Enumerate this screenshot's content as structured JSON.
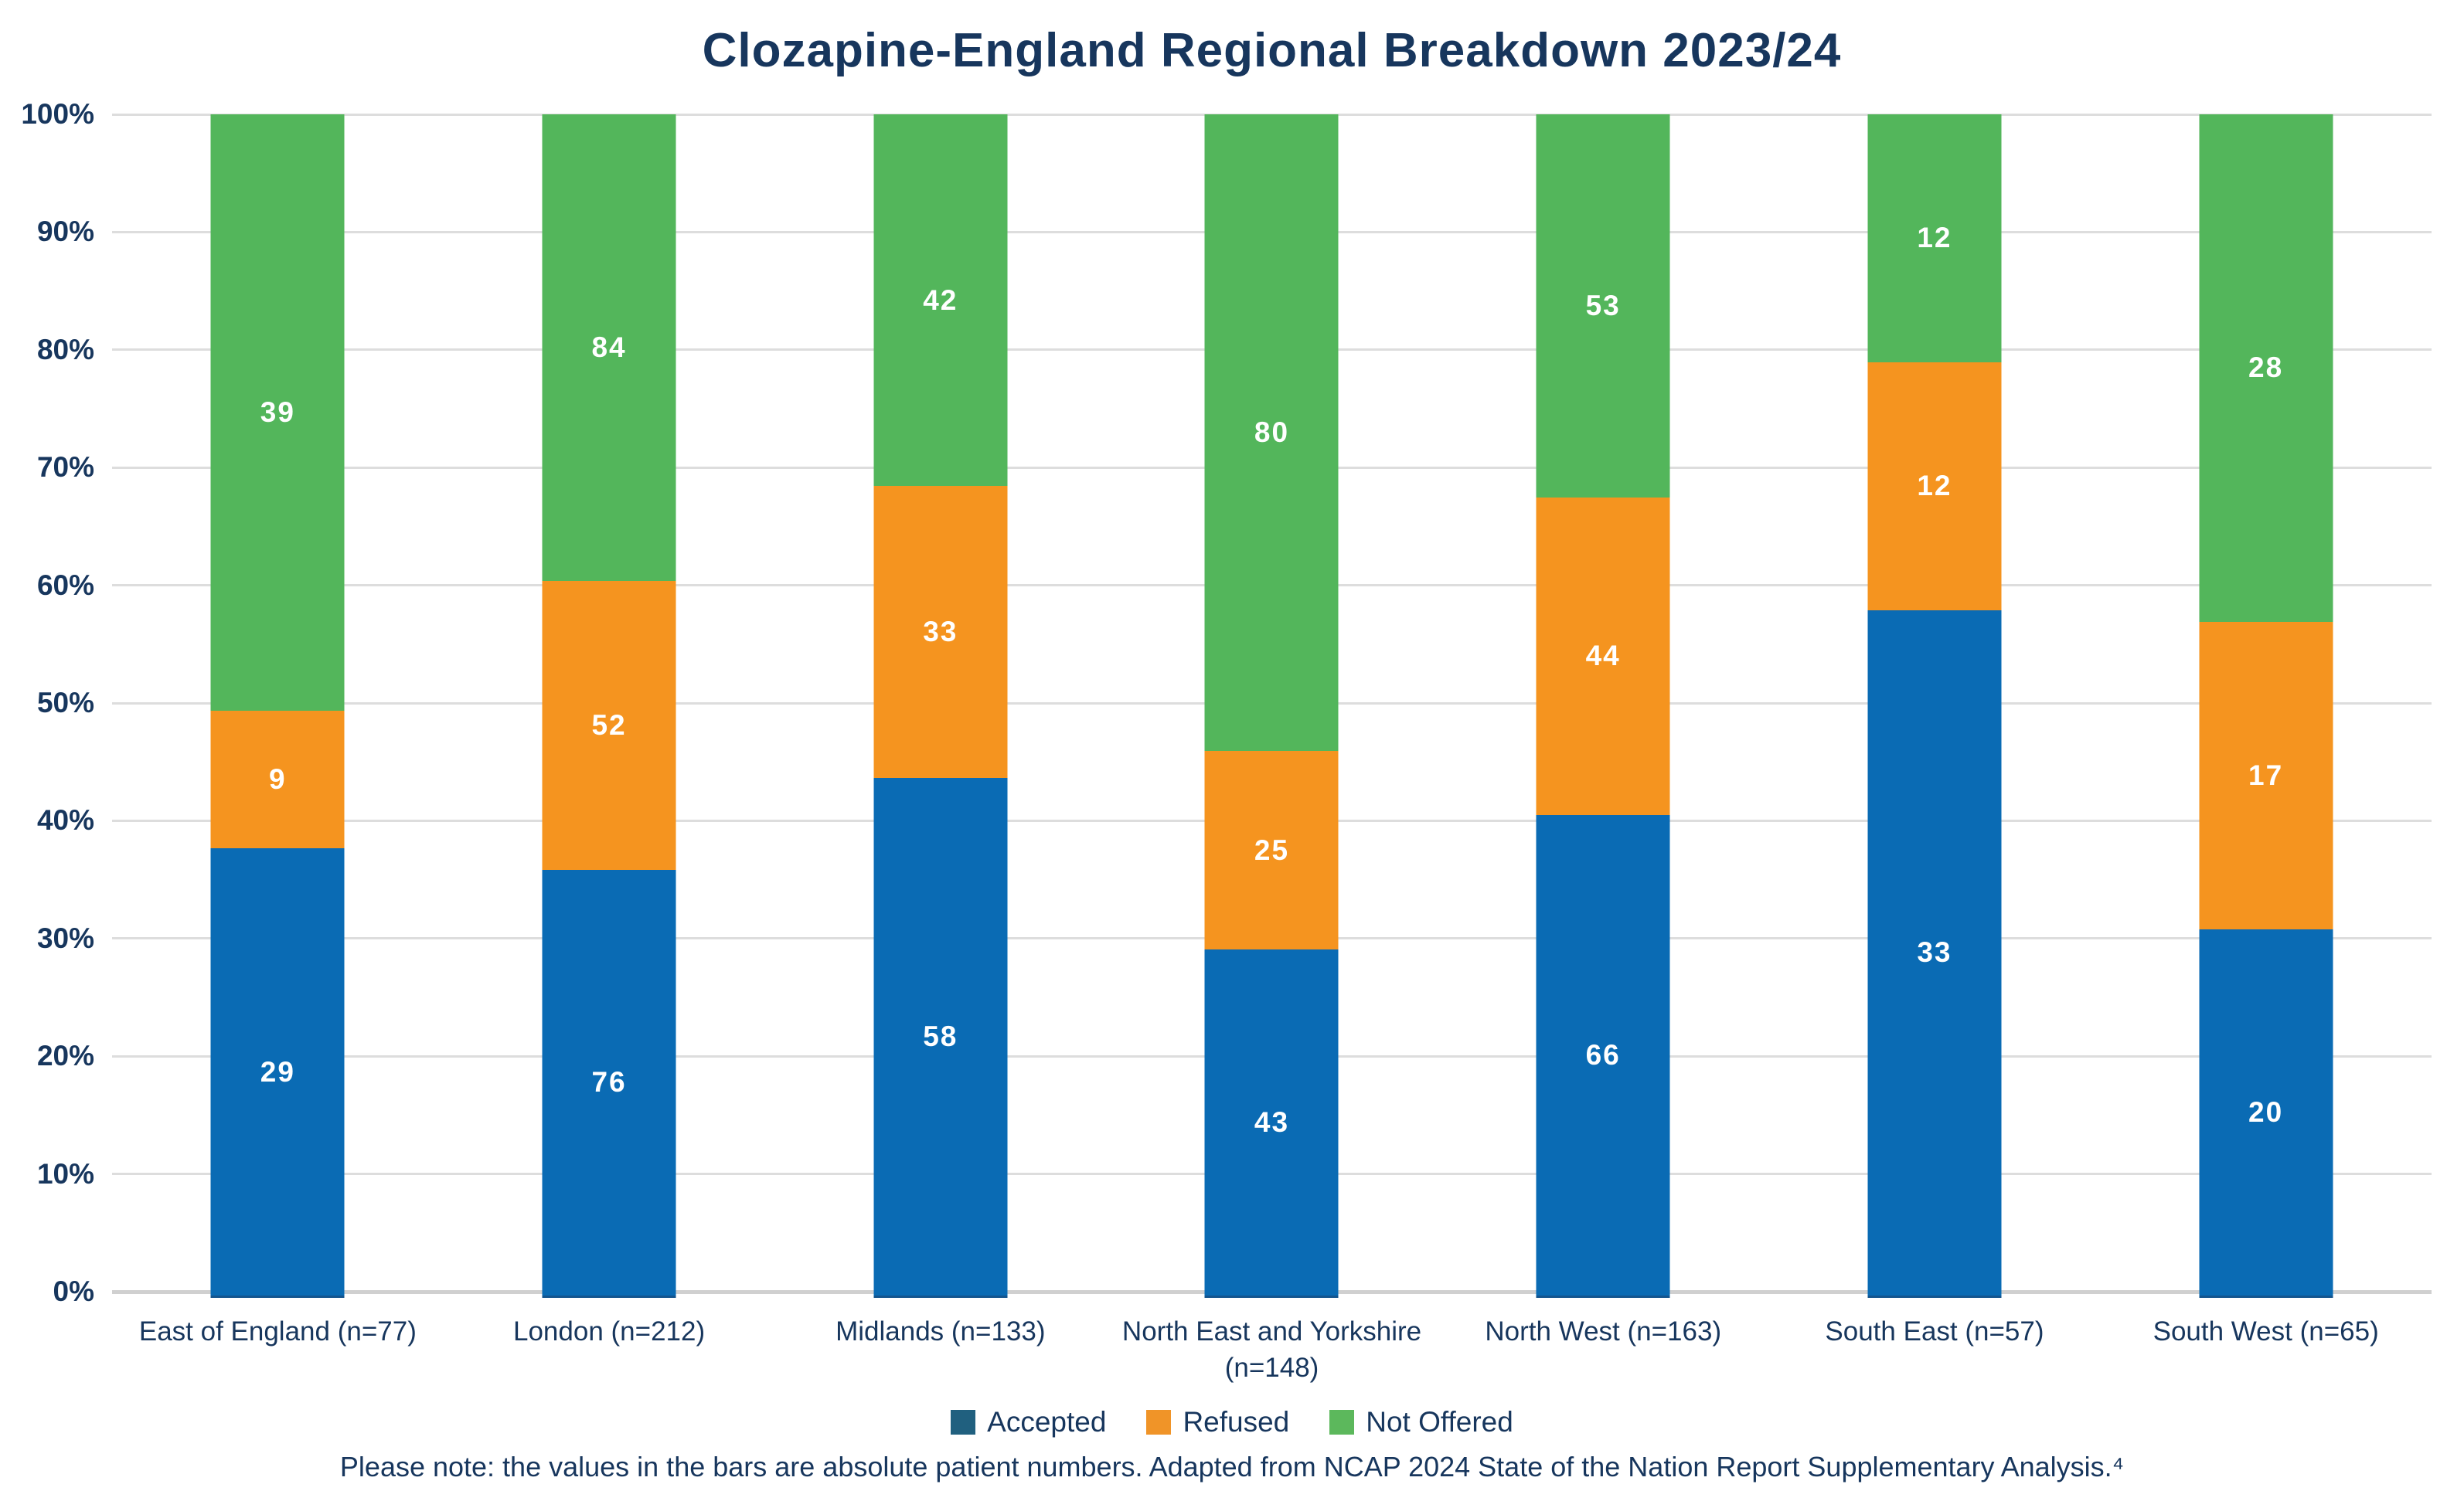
{
  "title": "Clozapine-England Regional Breakdown 2023/24",
  "footnote": "Please note: the values in the bars are absolute patient numbers. Adapted from NCAP 2024 State of the Nation Report Supplementary Analysis.⁴",
  "colors": {
    "accepted_bar": "#0A6BB4",
    "accepted_bar_edge": "#14558E",
    "accepted_legend": "#20607F",
    "refused": "#F5941F",
    "not_offered": "#53B65B",
    "text_navy": "#17365D",
    "gridline": "#DDDDDD",
    "axis_line": "#D0D0D0",
    "bar_value_label": "#FFFFFF"
  },
  "chart_data": {
    "type": "bar",
    "variant": "stacked-100-percent-column",
    "title": "Clozapine-England Regional Breakdown 2023/24",
    "xlabel": "",
    "ylabel": "",
    "ylim": [
      0,
      100
    ],
    "grid": true,
    "legend_position": "bottom",
    "y_ticks": [
      "0%",
      "10%",
      "20%",
      "30%",
      "40%",
      "50%",
      "60%",
      "70%",
      "80%",
      "90%",
      "100%"
    ],
    "categories": [
      "East of England (n=77)",
      "London (n=212)",
      "Midlands (n=133)",
      "North East and Yorkshire\n(n=148)",
      "North West (n=163)",
      "South East (n=57)",
      "South West (n=65)"
    ],
    "category_totals": [
      77,
      212,
      133,
      148,
      163,
      57,
      65
    ],
    "series": [
      {
        "name": "Accepted",
        "color": "#0A6BB4",
        "legend_color": "#20607F",
        "values": [
          29,
          76,
          58,
          43,
          66,
          33,
          20
        ]
      },
      {
        "name": "Refused",
        "color": "#F5941F",
        "legend_color": "#F09428",
        "values": [
          9,
          52,
          33,
          25,
          44,
          12,
          17
        ]
      },
      {
        "name": "Not Offered",
        "color": "#53B65B",
        "legend_color": "#5CB85C",
        "values": [
          39,
          84,
          42,
          80,
          53,
          12,
          28
        ]
      }
    ],
    "value_labels": "absolute patient numbers shown centered in each segment, white bold"
  }
}
